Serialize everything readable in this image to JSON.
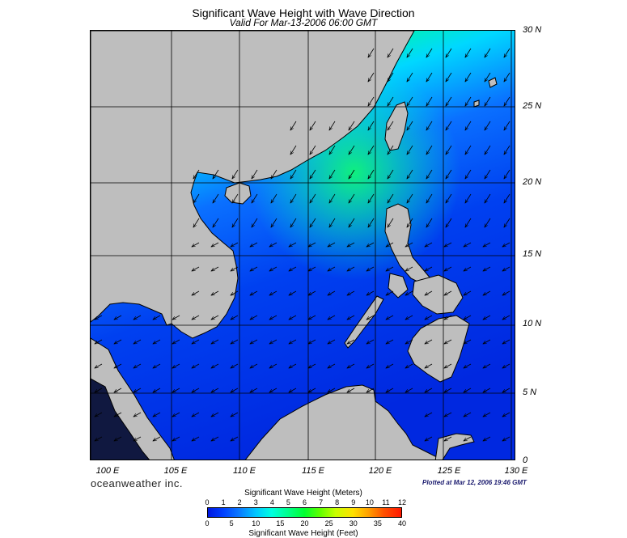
{
  "map": {
    "title": "Significant Wave Height with Wave Direction",
    "subtitle": "Valid For Mar-13-2006 06:00 GMT",
    "lat_labels": [
      "30 N",
      "25 N",
      "20 N",
      "15 N",
      "10 N",
      "5 N",
      "0"
    ],
    "lon_labels": [
      "100 E",
      "105 E",
      "110 E",
      "115 E",
      "120 E",
      "125 E",
      "130 E"
    ],
    "lon_range": [
      99,
      130
    ],
    "lat_range": [
      0,
      30
    ],
    "land_color": "#bebebe",
    "wave_direction": "from northeast"
  },
  "footer": {
    "brand": "oceanweather inc.",
    "plotted": "Plotted at Mar 12, 2006 19:46 GMT"
  },
  "legend": {
    "meters_title": "Significant Wave Height (Meters)",
    "meters_ticks": [
      "0",
      "1",
      "2",
      "3",
      "4",
      "5",
      "6",
      "7",
      "8",
      "9",
      "10",
      "11",
      "12"
    ],
    "feet_title": "Significant Wave Height (Feet)",
    "feet_ticks": [
      "0",
      "5",
      "10",
      "15",
      "20",
      "25",
      "30",
      "35",
      "40"
    ]
  }
}
